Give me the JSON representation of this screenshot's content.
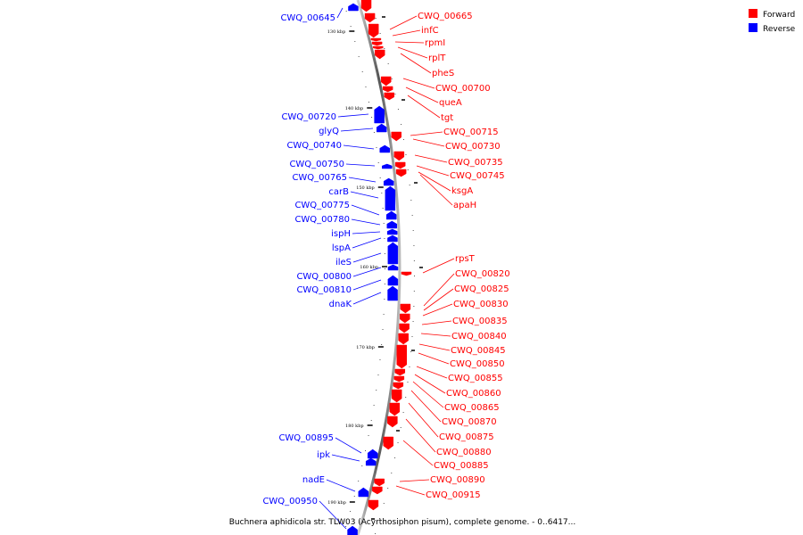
{
  "legend": {
    "forward": {
      "label": "Forward",
      "color": "#ff0000"
    },
    "reverse": {
      "label": "Reverse",
      "color": "#0000ff"
    }
  },
  "caption": "Buchnera aphidicola str. TLW03 (Acyrthosiphon pisum), complete genome. - 0..6417...",
  "ticks": [
    "130 kbp",
    "140 kbp",
    "150 kbp",
    "160 kbp",
    "170 kbp",
    "180 kbp",
    "190 kbp"
  ],
  "forward_labels": [
    "CWQ_00665",
    "infC",
    "rpmI",
    "rplT",
    "pheS",
    "CWQ_00700",
    "queA",
    "tgt",
    "CWQ_00715",
    "CWQ_00730",
    "CWQ_00735",
    "CWQ_00745",
    "ksgA",
    "apaH",
    "rpsT",
    "CWQ_00820",
    "CWQ_00825",
    "CWQ_00830",
    "CWQ_00835",
    "CWQ_00840",
    "CWQ_00845",
    "CWQ_00850",
    "CWQ_00855",
    "CWQ_00860",
    "CWQ_00865",
    "CWQ_00870",
    "CWQ_00875",
    "CWQ_00880",
    "CWQ_00885",
    "CWQ_00890",
    "CWQ_00915"
  ],
  "reverse_labels": [
    "CWQ_00645",
    "CWQ_00720",
    "glyQ",
    "CWQ_00740",
    "CWQ_00750",
    "CWQ_00765",
    "carB",
    "CWQ_00775",
    "CWQ_00780",
    "ispH",
    "lspA",
    "ileS",
    "CWQ_00800",
    "CWQ_00810",
    "dnaK",
    "CWQ_00895",
    "ipk",
    "nadE",
    "CWQ_00950"
  ]
}
